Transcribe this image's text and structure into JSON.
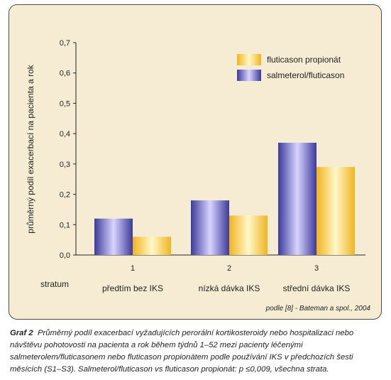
{
  "colors": {
    "panel_bg": "#f6ecd4",
    "series_dark": "#3d3a9a",
    "series_dark_light": "#d8d4ff",
    "series_light": "#f0b420",
    "series_light_light": "#fff8c8"
  },
  "chart_data": {
    "type": "bar",
    "ylabel": "průměrný podíl exacerbací na pacienta a rok",
    "ylim": [
      0,
      0.7
    ],
    "yticks": [
      "0,0",
      "0,1",
      "0,2",
      "0,3",
      "0,4",
      "0,5",
      "0,6",
      "0,7"
    ],
    "stratum_label": "stratum",
    "categories": [
      "1",
      "2",
      "3"
    ],
    "category_descriptions": [
      "předtím bez IKS",
      "nízká dávka IKS",
      "střední dávka IKS"
    ],
    "series": [
      {
        "name": "salmeterol/fluticason",
        "values": [
          0.12,
          0.18,
          0.37
        ]
      },
      {
        "name": "fluticason propionát",
        "values": [
          0.06,
          0.13,
          0.29
        ]
      }
    ],
    "legend": [
      "fluticason propionát",
      "salmeterol/fluticason"
    ],
    "legend_position": "top-right",
    "grid": false
  },
  "source_note": "podle [8] - Bateman a spol., 2004",
  "caption": {
    "label": "Graf 2",
    "text": "Průměrný podíl exacerbací vyžadujících perorální kortikosteroidy nebo hospitalizaci nebo návštěvu pohotovosti na pacienta a rok během týdnů 1–52 mezi pacienty léčenými salmeterolem/fluticasonem nebo fluticason propionátem podle používání IKS v předchozích šesti měsících (S1–S3). Salmeterol/fluticason vs fluticason propionát: p ≤0,009, všechna strata."
  }
}
